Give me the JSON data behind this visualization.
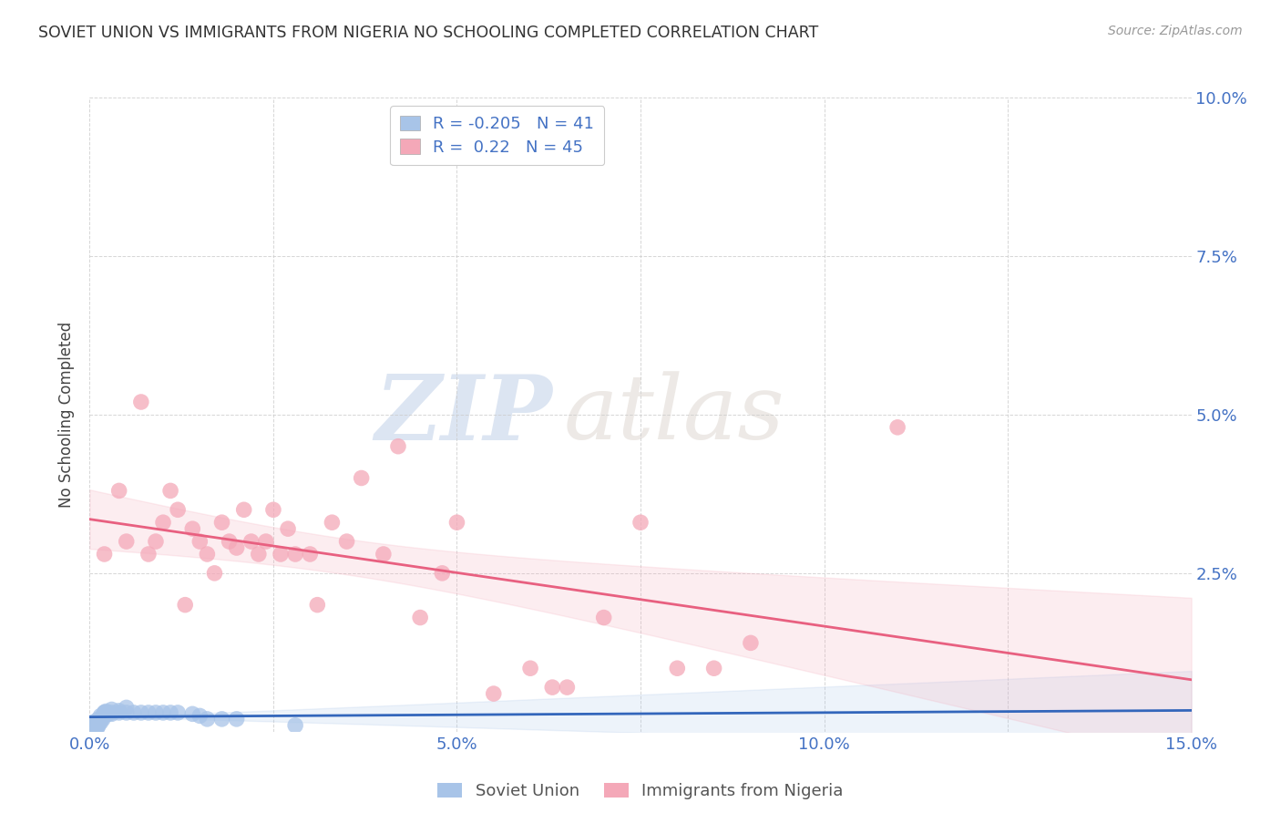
{
  "title": "SOVIET UNION VS IMMIGRANTS FROM NIGERIA NO SCHOOLING COMPLETED CORRELATION CHART",
  "source": "Source: ZipAtlas.com",
  "tick_color": "#4472c4",
  "ylabel": "No Schooling Completed",
  "xlim": [
    0.0,
    0.15
  ],
  "ylim": [
    0.0,
    0.1
  ],
  "xticks": [
    0.0,
    0.025,
    0.05,
    0.075,
    0.1,
    0.125,
    0.15
  ],
  "yticks": [
    0.0,
    0.025,
    0.05,
    0.075,
    0.1
  ],
  "xtick_labels": [
    "0.0%",
    "",
    "5.0%",
    "",
    "10.0%",
    "",
    "15.0%"
  ],
  "ytick_labels": [
    "",
    "2.5%",
    "5.0%",
    "7.5%",
    "10.0%"
  ],
  "background_color": "#ffffff",
  "grid_color": "#cccccc",
  "soviet_color": "#a8c4e8",
  "nigeria_color": "#f4a8b8",
  "soviet_line_color": "#3366bb",
  "nigeria_line_color": "#e86080",
  "soviet_R": -0.205,
  "soviet_N": 41,
  "nigeria_R": 0.22,
  "nigeria_N": 45,
  "soviet_x": [
    0.0005,
    0.0005,
    0.0008,
    0.001,
    0.001,
    0.001,
    0.001,
    0.0012,
    0.0012,
    0.0015,
    0.0015,
    0.0015,
    0.0018,
    0.002,
    0.002,
    0.002,
    0.002,
    0.0022,
    0.0022,
    0.0025,
    0.0025,
    0.003,
    0.003,
    0.003,
    0.004,
    0.004,
    0.005,
    0.005,
    0.006,
    0.007,
    0.008,
    0.009,
    0.01,
    0.011,
    0.012,
    0.014,
    0.015,
    0.016,
    0.018,
    0.02,
    0.028
  ],
  "soviet_y": [
    0.001,
    0.0015,
    0.001,
    0.001,
    0.001,
    0.0008,
    0.0005,
    0.001,
    0.002,
    0.0015,
    0.002,
    0.0025,
    0.002,
    0.003,
    0.003,
    0.0028,
    0.0025,
    0.003,
    0.0032,
    0.003,
    0.0028,
    0.0035,
    0.003,
    0.0028,
    0.0033,
    0.003,
    0.0038,
    0.003,
    0.003,
    0.003,
    0.003,
    0.003,
    0.003,
    0.003,
    0.003,
    0.0028,
    0.0025,
    0.002,
    0.002,
    0.002,
    0.001
  ],
  "nigeria_x": [
    0.002,
    0.004,
    0.005,
    0.007,
    0.008,
    0.009,
    0.01,
    0.011,
    0.012,
    0.013,
    0.014,
    0.015,
    0.016,
    0.017,
    0.018,
    0.019,
    0.02,
    0.021,
    0.022,
    0.023,
    0.024,
    0.025,
    0.026,
    0.027,
    0.028,
    0.03,
    0.031,
    0.033,
    0.035,
    0.037,
    0.04,
    0.042,
    0.045,
    0.048,
    0.05,
    0.055,
    0.06,
    0.063,
    0.065,
    0.07,
    0.075,
    0.08,
    0.085,
    0.09,
    0.11
  ],
  "nigeria_y": [
    0.028,
    0.038,
    0.03,
    0.052,
    0.028,
    0.03,
    0.033,
    0.038,
    0.035,
    0.02,
    0.032,
    0.03,
    0.028,
    0.025,
    0.033,
    0.03,
    0.029,
    0.035,
    0.03,
    0.028,
    0.03,
    0.035,
    0.028,
    0.032,
    0.028,
    0.028,
    0.02,
    0.033,
    0.03,
    0.04,
    0.028,
    0.045,
    0.018,
    0.025,
    0.033,
    0.006,
    0.01,
    0.007,
    0.007,
    0.018,
    0.033,
    0.01,
    0.01,
    0.014,
    0.048
  ],
  "watermark_top": "ZIP",
  "watermark_bottom": "atlas"
}
